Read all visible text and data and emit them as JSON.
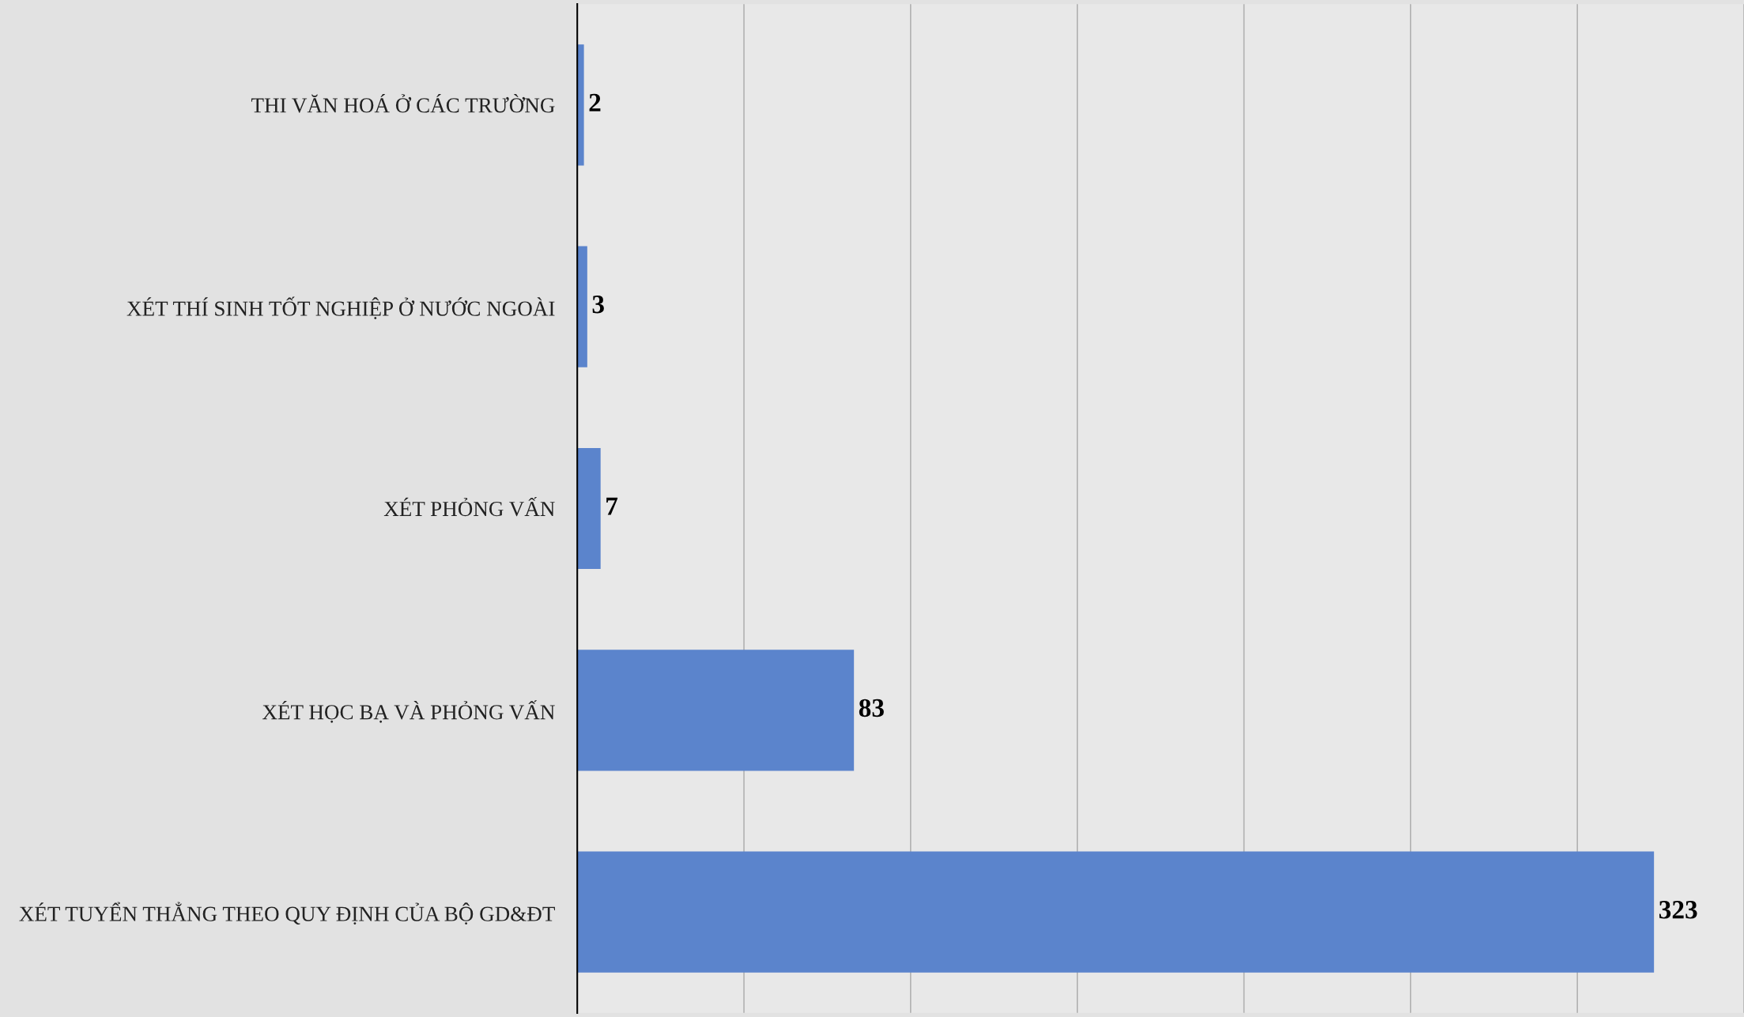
{
  "chart_data": {
    "type": "bar",
    "orientation": "horizontal",
    "categories": [
      "THI VĂN HOÁ Ở CÁC TRƯỜNG",
      "XÉT THÍ SINH TỐT NGHIỆP Ở NƯỚC NGOÀI",
      "XÉT PHỎNG VẤN",
      "XÉT HỌC BẠ VÀ PHỎNG VẤN",
      "XÉT TUYỂN THẲNG THEO QUY ĐỊNH CỦA BỘ GD&ĐT"
    ],
    "values": [
      2,
      3,
      7,
      83,
      323
    ],
    "color": "#5b84cc",
    "xlim": [
      0,
      350
    ],
    "xticks": [
      {
        "value": 0,
        "label": null
      },
      {
        "value": 50,
        "label": null
      },
      {
        "value": 100,
        "label": null
      },
      {
        "value": 150,
        "label": null
      },
      {
        "value": 200,
        "label": null
      },
      {
        "value": 250,
        "label": null
      },
      {
        "value": 300,
        "label": null
      },
      {
        "value": 350,
        "label": null
      }
    ],
    "grid": "x",
    "tick_labels": "y",
    "data_labels": true
  }
}
